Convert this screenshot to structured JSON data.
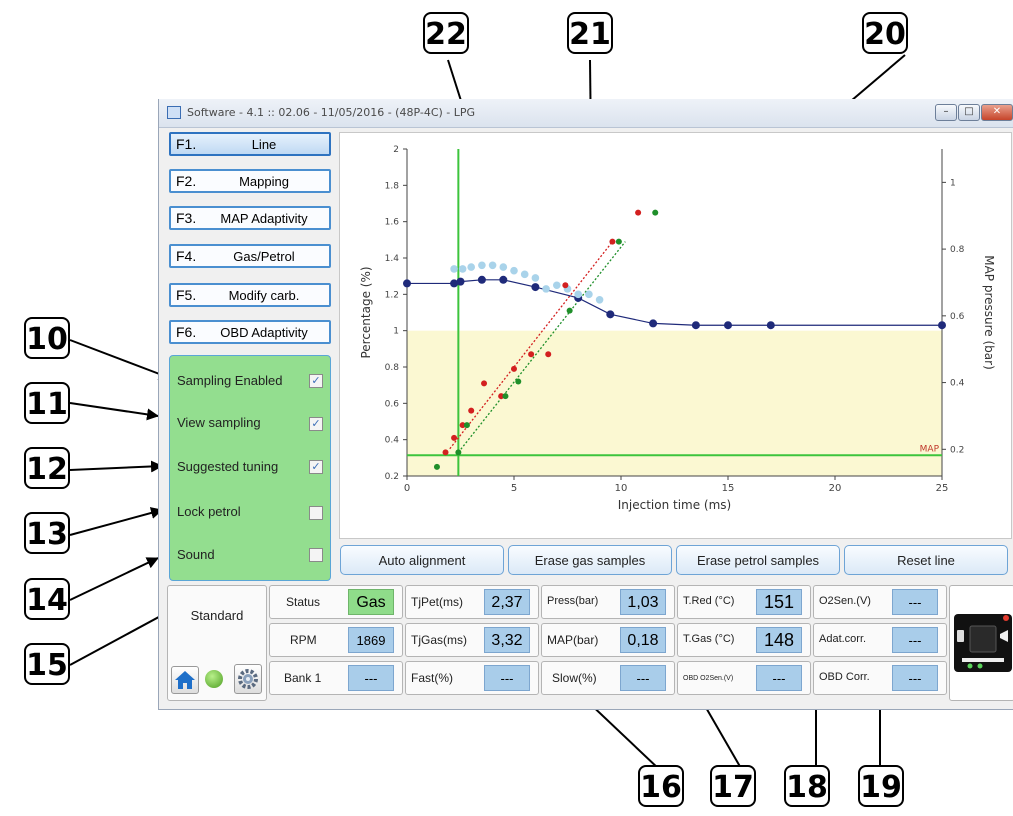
{
  "window": {
    "title": "Software - 4.1 :: 02.06 - 11/05/2016 - (48P-4C) - LPG",
    "controls": [
      "–",
      "□",
      "✕"
    ]
  },
  "function_buttons": [
    {
      "key": "F1.",
      "label": "Line",
      "active": true
    },
    {
      "key": "F2.",
      "label": "Mapping"
    },
    {
      "key": "F3.",
      "label": "MAP Adaptivity"
    },
    {
      "key": "F4.",
      "label": "Gas/Petrol"
    },
    {
      "key": "F5.",
      "label": "Modify carb."
    },
    {
      "key": "F6.",
      "label": "OBD Adaptivity"
    }
  ],
  "options": [
    {
      "label": "Sampling Enabled",
      "checked": true
    },
    {
      "label": "View sampling",
      "checked": true
    },
    {
      "label": "Suggested tuning",
      "checked": true
    },
    {
      "label": "Lock petrol",
      "checked": false
    },
    {
      "label": "Sound",
      "checked": false
    }
  ],
  "action_buttons": [
    "Auto alignment",
    "Erase gas samples",
    "Erase petrol samples",
    "Reset line"
  ],
  "status": {
    "profile": "Standard",
    "row1": [
      {
        "label": "Status",
        "value": "Gas"
      },
      {
        "label": "TjPet(ms)",
        "value": "2,37"
      },
      {
        "label": "Press(bar)",
        "value": "1,03"
      },
      {
        "label": "T.Red (°C)",
        "value": "151"
      },
      {
        "label": "O2Sen.(V)",
        "value": "---"
      }
    ],
    "row2": [
      {
        "label": "RPM",
        "value": "1869"
      },
      {
        "label": "TjGas(ms)",
        "value": "3,32"
      },
      {
        "label": "MAP(bar)",
        "value": "0,18"
      },
      {
        "label": "T.Gas (°C)",
        "value": "148"
      },
      {
        "label": "Adat.corr.",
        "value": "---"
      }
    ],
    "row3": [
      {
        "label": "Bank 1",
        "value": "---"
      },
      {
        "label": "Fast(%)",
        "value": "---"
      },
      {
        "label": "Slow(%)",
        "value": "---"
      },
      {
        "label": "OBD O2Sen.(V)",
        "value": "---"
      },
      {
        "label": "OBD Corr.",
        "value": "---"
      }
    ],
    "icons": [
      "home-icon",
      "status-led-icon",
      "settings-gear-icon"
    ]
  },
  "annotations": [
    "10",
    "11",
    "12",
    "13",
    "14",
    "15",
    "16",
    "17",
    "18",
    "19",
    "20",
    "21",
    "22"
  ],
  "colors": {
    "accent": "#4a8fd0",
    "panel_green": "#93de8f",
    "value_blue": "#a9cdea",
    "line_navy": "#1f2a7a"
  },
  "chart_data": {
    "type": "line",
    "xlabel": "Injection time (ms)",
    "ylabel": "Percentage (%)",
    "y2label": "MAP pressure (bar)",
    "xlim": [
      0,
      25
    ],
    "ylim": [
      0.2,
      2
    ],
    "y2lim": [
      0.12,
      1.1
    ],
    "x_ticks": [
      0,
      5,
      10,
      15,
      20,
      25
    ],
    "y_ticks": [
      0.2,
      0.4,
      0.6,
      0.8,
      1,
      1.2,
      1.4,
      1.6,
      1.8,
      2
    ],
    "y2_ticks": [
      0.2,
      0.4,
      0.6,
      0.8,
      1
    ],
    "map_marker": {
      "label": "MAP",
      "value": 0.2
    },
    "cursor_x": 2.4,
    "highlight_band": [
      0.2,
      1.0
    ],
    "series": [
      {
        "values_x": [
          0,
          2.2,
          2.5,
          3.5,
          4.5,
          6,
          8,
          9.5,
          11.5,
          13.5,
          15,
          17,
          25
        ],
        "values_y": [
          1.26,
          1.26,
          1.27,
          1.28,
          1.28,
          1.24,
          1.18,
          1.09,
          1.04,
          1.03,
          1.03,
          1.03,
          1.03
        ],
        "color": "#1f2a7a"
      },
      {
        "values_x": [
          2.2,
          2.6,
          3.0,
          3.5,
          4.0,
          4.5,
          5.0,
          5.5,
          6.0,
          6.5,
          7.0,
          7.5,
          8.0,
          8.5,
          9.0
        ],
        "values_y": [
          1.34,
          1.34,
          1.35,
          1.36,
          1.36,
          1.35,
          1.33,
          1.31,
          1.29,
          1.23,
          1.25,
          1.23,
          1.2,
          1.2,
          1.17
        ],
        "color": "#a9d3ea"
      },
      {
        "values_x": [
          1.8,
          2.2,
          2.6,
          3.0,
          3.6,
          4.4,
          5.0,
          5.8,
          6.6,
          7.4,
          9.6,
          10.8
        ],
        "values_y": [
          0.33,
          0.41,
          0.48,
          0.56,
          0.71,
          0.64,
          0.79,
          0.87,
          0.87,
          1.25,
          1.49,
          1.65
        ],
        "color": "#d32020"
      },
      {
        "values_x": [
          1.4,
          2.4,
          2.8,
          4.6,
          5.2,
          7.6,
          9.9,
          11.6
        ],
        "values_y": [
          0.25,
          0.33,
          0.48,
          0.64,
          0.72,
          1.11,
          1.49,
          1.65
        ],
        "color": "#1f8f2a"
      }
    ],
    "trend_lines": [
      {
        "x": [
          2.0,
          9.6
        ],
        "y": [
          0.35,
          1.49
        ],
        "color": "#d32020"
      },
      {
        "x": [
          2.4,
          10.2
        ],
        "y": [
          0.33,
          1.49
        ],
        "color": "#1f8f2a"
      }
    ]
  }
}
